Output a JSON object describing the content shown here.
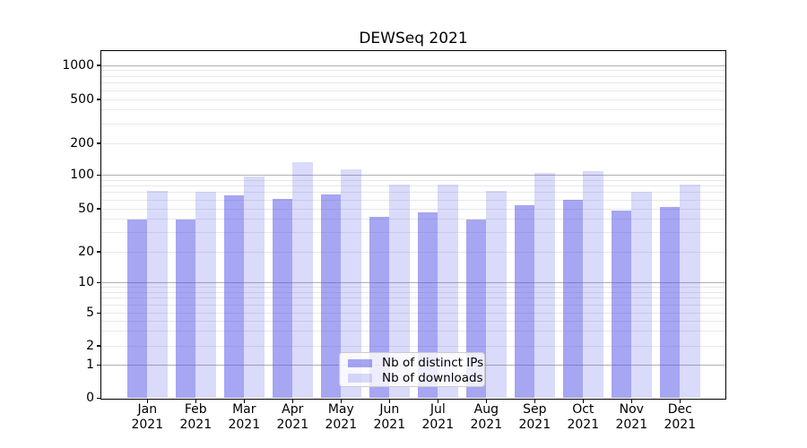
{
  "title": "DEWSeq 2021",
  "chart_data": {
    "type": "bar",
    "title": "DEWSeq 2021",
    "xlabel": "",
    "ylabel": "",
    "yscale": "symlog",
    "grid": "horizontal-major-and-minor",
    "legend_position": "lower center",
    "categories": [
      "Jan 2021",
      "Feb 2021",
      "Mar 2021",
      "Apr 2021",
      "May 2021",
      "Jun 2021",
      "Jul 2021",
      "Aug 2021",
      "Sep 2021",
      "Oct 2021",
      "Nov 2021",
      "Dec 2021"
    ],
    "series": [
      {
        "name": "Nb of distinct IPs",
        "color": "rgba(85,85,230,0.52)",
        "values": [
          40,
          40,
          66,
          61,
          67,
          42,
          46,
          40,
          54,
          60,
          48,
          52
        ]
      },
      {
        "name": "Nb of downloads",
        "color": "rgba(85,85,230,0.22)",
        "values": [
          73,
          71,
          97,
          133,
          115,
          83,
          83,
          73,
          105,
          110,
          71,
          83
        ]
      }
    ],
    "ytick_labels": [
      "0",
      "1",
      "2",
      "5",
      "10",
      "20",
      "50",
      "100",
      "200",
      "500",
      "1000"
    ],
    "ytick_values": [
      0,
      1,
      2,
      5,
      10,
      20,
      50,
      100,
      200,
      500,
      1000
    ],
    "ylim": [
      0,
      1350
    ],
    "colors": {
      "major_grid": "#b0b0b0",
      "minor_grid": "#e8e8e8",
      "axis": "#000000",
      "background": "#ffffff"
    }
  }
}
